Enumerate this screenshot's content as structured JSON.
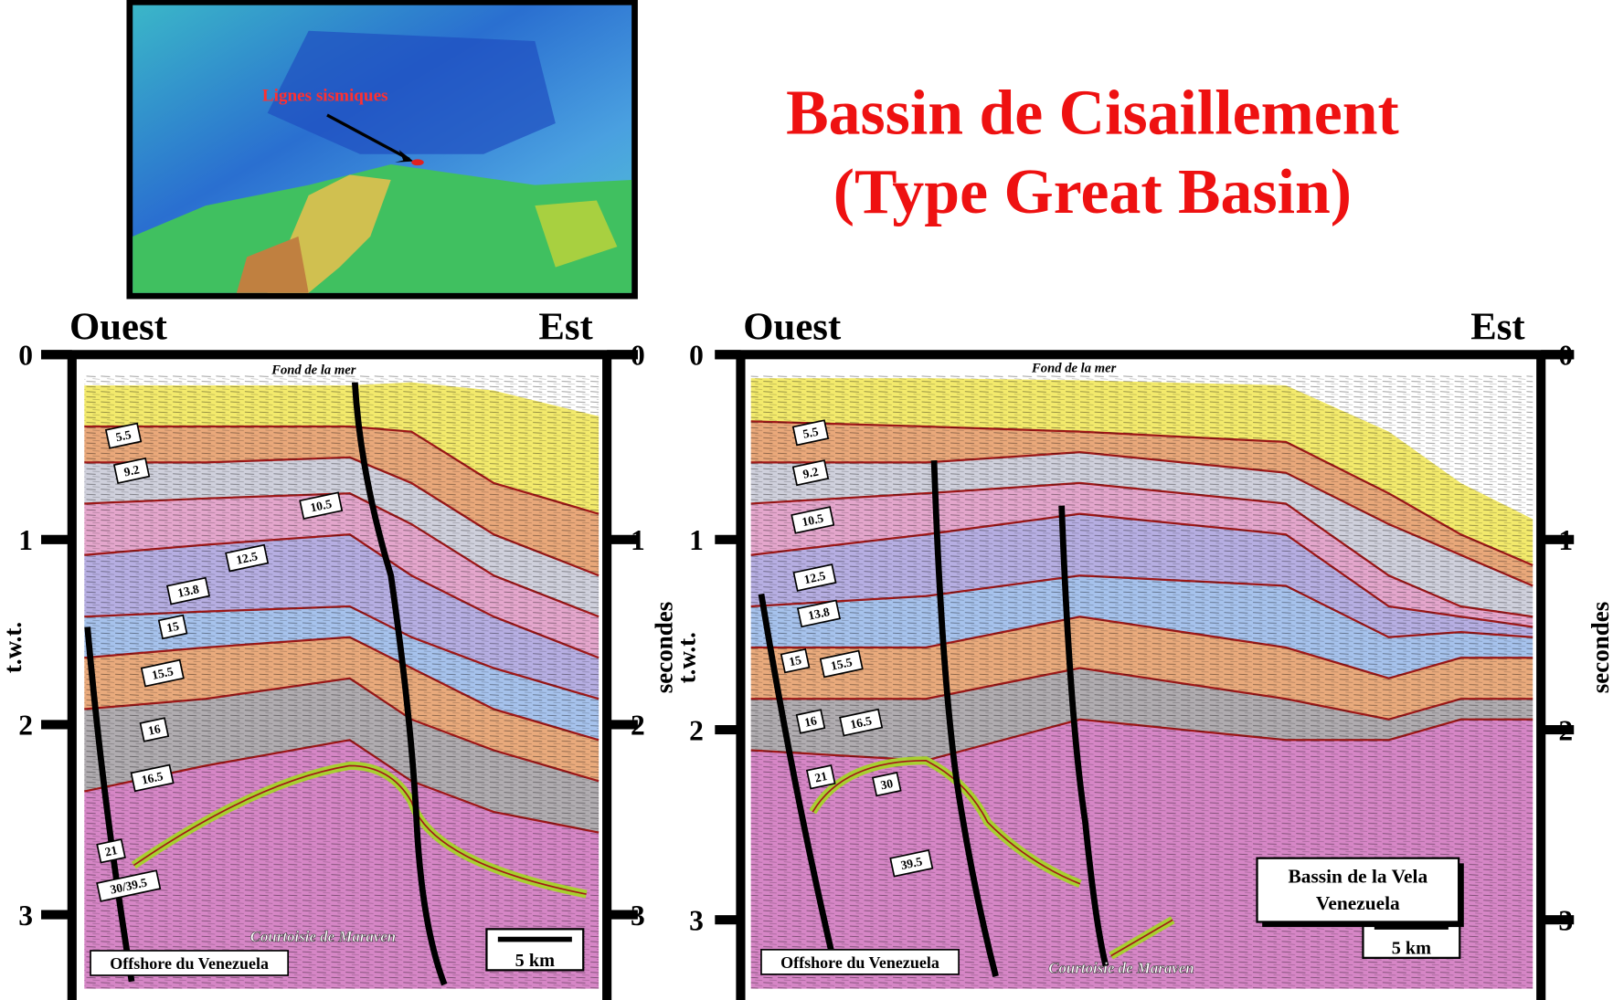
{
  "title": [
    "Bassin de Cisaillement",
    "(Type Great Basin)"
  ],
  "map_label": "Lignes sismiques",
  "panels": [
    {
      "west": "Ouest",
      "east": "Est",
      "left_ticks": [
        "0",
        "1",
        "2",
        "3"
      ],
      "right_ticks": [
        "0",
        "1",
        "2",
        "3"
      ],
      "left_axis_title": "t.w.t.",
      "right_axis_title": "secondes",
      "seafloor": "Fond de la mer",
      "horizons": [
        "5.5",
        "9.2",
        "10.5",
        "12.5",
        "13.8",
        "15",
        "15.5",
        "16",
        "16.5",
        "21",
        "30/39.5"
      ],
      "location": "Offshore du Venezuela",
      "credit": "Courtoisie de Maraven",
      "scale": "5 km"
    },
    {
      "west": "Ouest",
      "east": "Est",
      "left_ticks": [
        "0",
        "1",
        "2",
        "3"
      ],
      "right_ticks": [
        "0",
        "1",
        "2",
        "3"
      ],
      "left_axis_title": "t.w.t.",
      "right_axis_title": "secondes",
      "seafloor": "Fond de la mer",
      "horizons": [
        "5.5",
        "9.2",
        "10.5",
        "12.5",
        "13.8",
        "15",
        "15.5",
        "16",
        "16.5",
        "21",
        "30",
        "39.5"
      ],
      "location": "Offshore du Venezuela",
      "credit": "Courtoisie de Maraven",
      "scale": "5 km",
      "box": [
        "Bassin de la Vela",
        "Venezuela"
      ]
    }
  ]
}
